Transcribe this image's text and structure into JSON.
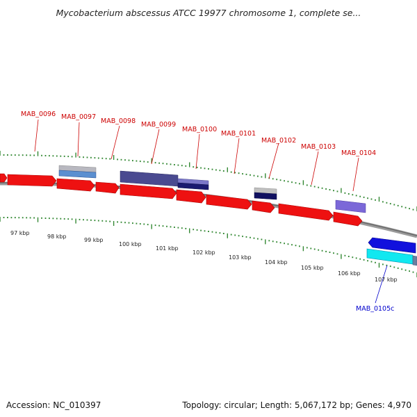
{
  "title": "Mycobacterium abscessus ATCC 19977 chromosome 1, complete se...",
  "footer": {
    "accession": "Accession: NC_010397",
    "topology": "Topology: circular; Length: 5,067,172 bp; Genes: 4,970"
  },
  "colors": {
    "cds": "#ee1111",
    "backbone": "#808080",
    "tick_mark": "#338833",
    "forward_label": "#cc0000",
    "reverse_label": "#0000cc",
    "reverse_cds": "#1111dd"
  },
  "scale_labels": [
    "97 kbp",
    "98 kbp",
    "99 kbp",
    "100 kbp",
    "101 kbp",
    "102 kbp",
    "103 kbp",
    "104 kbp",
    "105 kbp",
    "106 kbp",
    "107 kbp"
  ],
  "gene_labels": {
    "forward": [
      "MAB_0096",
      "MAB_0097",
      "MAB_0098",
      "MAB_0099",
      "MAB_0100",
      "MAB_0101",
      "MAB_0102",
      "MAB_0103",
      "MAB_0104"
    ],
    "reverse": [
      "MAB_0105c"
    ]
  }
}
